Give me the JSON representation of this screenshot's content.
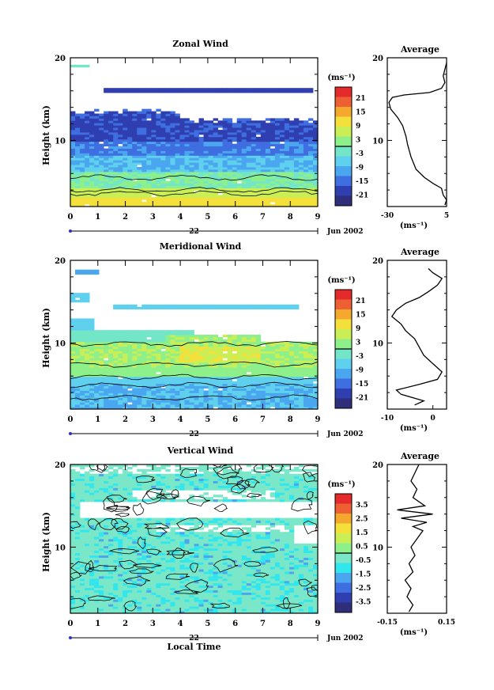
{
  "chart_data": [
    {
      "type": "heatmap",
      "title": "Zonal Wind",
      "xlabel": "",
      "ylabel": "Height (km)",
      "xlim": [
        0,
        9
      ],
      "ylim": [
        2,
        20
      ],
      "x_ticks": [
        "0",
        "1",
        "2",
        "3",
        "4",
        "5",
        "6",
        "7",
        "8",
        "9"
      ],
      "y_ticks": [
        "10",
        "20"
      ],
      "date_label": "Jun 2002",
      "day_label": "22",
      "colorbar": {
        "unit": "(ms⁻¹)",
        "ticks": [
          "21",
          "15",
          "9",
          "3",
          "-3",
          "-9",
          "-15",
          "-21"
        ]
      },
      "average": {
        "title": "Average",
        "xlim": [
          -30,
          5
        ],
        "x_ticks": [
          "-30",
          "5"
        ],
        "xlabel": "(ms⁻¹)",
        "y_ticks": [
          "10",
          "20"
        ],
        "profile": [
          [
            4,
            2.2
          ],
          [
            5,
            2.8
          ],
          [
            3,
            3.4
          ],
          [
            2,
            4.2
          ],
          [
            -3,
            4.8
          ],
          [
            -8,
            5.5
          ],
          [
            -13,
            6.5
          ],
          [
            -16,
            8
          ],
          [
            -18,
            9.5
          ],
          [
            -19,
            10.5
          ],
          [
            -21,
            11.8
          ],
          [
            -24,
            12.8
          ],
          [
            -28,
            13.8
          ],
          [
            -29,
            14.6
          ],
          [
            -27,
            15.2
          ],
          [
            -20,
            15.5
          ],
          [
            -5,
            15.8
          ],
          [
            2,
            16.3
          ],
          [
            4,
            17
          ],
          [
            3,
            17.8
          ],
          [
            5,
            19.4
          ]
        ]
      }
    },
    {
      "type": "heatmap",
      "title": "Meridional Wind",
      "xlabel": "",
      "ylabel": "Height (km)",
      "xlim": [
        0,
        9
      ],
      "ylim": [
        2,
        20
      ],
      "x_ticks": [
        "0",
        "1",
        "2",
        "3",
        "4",
        "5",
        "6",
        "7",
        "8",
        "9"
      ],
      "y_ticks": [
        "10",
        "20"
      ],
      "date_label": "Jun 2002",
      "day_label": "22",
      "colorbar": {
        "unit": "(ms⁻¹)",
        "ticks": [
          "21",
          "15",
          "9",
          "3",
          "-3",
          "-9",
          "-15",
          "-21"
        ]
      },
      "average": {
        "title": "Average",
        "xlim": [
          -10,
          3
        ],
        "x_ticks": [
          "-10",
          "0"
        ],
        "xlabel": "(ms⁻¹)",
        "y_ticks": [
          "10",
          "20"
        ],
        "profile": [
          [
            -4,
            2.5
          ],
          [
            -2,
            3
          ],
          [
            -7,
            3.8
          ],
          [
            -8,
            4.3
          ],
          [
            -3,
            5
          ],
          [
            1,
            5.6
          ],
          [
            2,
            6.5
          ],
          [
            0,
            7.5
          ],
          [
            -2,
            8.5
          ],
          [
            -3,
            9.5
          ],
          [
            -4,
            10.5
          ],
          [
            -6,
            11.5
          ],
          [
            -7,
            12.3
          ],
          [
            -9,
            13.2
          ],
          [
            -8,
            14
          ],
          [
            -6,
            14.8
          ],
          [
            -3,
            15.5
          ],
          [
            -1,
            16.2
          ],
          [
            1,
            17
          ],
          [
            2,
            17.8
          ],
          [
            0,
            18.5
          ],
          [
            -1,
            19
          ]
        ]
      }
    },
    {
      "type": "heatmap",
      "title": "Vertical Wind",
      "xlabel": "Local Time",
      "ylabel": "Height (km)",
      "xlim": [
        0,
        9
      ],
      "ylim": [
        2,
        20
      ],
      "x_ticks": [
        "0",
        "1",
        "2",
        "3",
        "4",
        "5",
        "6",
        "7",
        "8",
        "9"
      ],
      "y_ticks": [
        "10",
        "20"
      ],
      "date_label": "Jun 2002",
      "day_label": "22",
      "colorbar": {
        "unit": "(ms⁻¹)",
        "ticks": [
          "3.5",
          "2.5",
          "1.5",
          "0.5",
          "-0.5",
          "-1.5",
          "-2.5",
          "-3.5"
        ]
      },
      "average": {
        "title": "Average",
        "xlim": [
          -0.15,
          0.15
        ],
        "x_ticks": [
          "-0.15",
          "0.15"
        ],
        "xlabel": "(ms⁻¹)",
        "y_ticks": [
          "10",
          "20"
        ],
        "profile": [
          [
            -0.04,
            2.2
          ],
          [
            -0.02,
            3
          ],
          [
            -0.05,
            4
          ],
          [
            -0.03,
            5
          ],
          [
            -0.06,
            6
          ],
          [
            -0.02,
            7
          ],
          [
            -0.04,
            8
          ],
          [
            -0.01,
            9
          ],
          [
            -0.03,
            10
          ],
          [
            0.0,
            11
          ],
          [
            0.03,
            12
          ],
          [
            -0.02,
            12.5
          ],
          [
            0.05,
            13
          ],
          [
            -0.08,
            13.5
          ],
          [
            0.08,
            14
          ],
          [
            -0.1,
            14.5
          ],
          [
            0.04,
            15
          ],
          [
            -0.02,
            16
          ],
          [
            0.0,
            17
          ],
          [
            -0.03,
            18
          ],
          [
            -0.01,
            19
          ],
          [
            0.01,
            20
          ]
        ]
      }
    }
  ],
  "colors": {
    "zonal_scale": [
      "#2e2e7a",
      "#2f3fb0",
      "#3f6ee0",
      "#4aa6ef",
      "#5fd0ee",
      "#74e6c8",
      "#8df08a",
      "#c9ee56",
      "#f4e03a",
      "#f4a82e",
      "#ee6033",
      "#e42a2a"
    ],
    "vertical_scale": [
      "#2e2e7a",
      "#2f3fb0",
      "#3f6ee0",
      "#4aa6ef",
      "#32e6ee",
      "#7ae8c8",
      "#8df08a",
      "#c9ee56",
      "#f4e03a",
      "#f4a82e",
      "#ee6033",
      "#e42a2a"
    ]
  }
}
